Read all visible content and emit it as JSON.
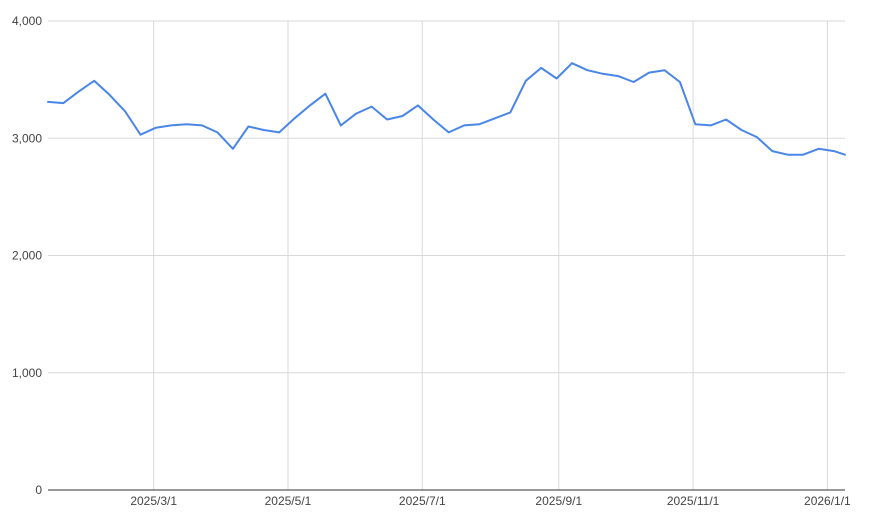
{
  "chart_data": {
    "type": "line",
    "title": "",
    "xlabel": "",
    "ylabel": "",
    "ylim": [
      0,
      4000
    ],
    "xlim": [
      "2025-01-12",
      "2026-01-09"
    ],
    "y_ticks": [
      {
        "value": 0,
        "label": "0"
      },
      {
        "value": 1000,
        "label": "1,000"
      },
      {
        "value": 2000,
        "label": "2,000"
      },
      {
        "value": 3000,
        "label": "3,000"
      },
      {
        "value": 4000,
        "label": "4,000"
      }
    ],
    "x_ticks": [
      {
        "date": "2025-03-01",
        "label": "2025/3/1"
      },
      {
        "date": "2025-05-01",
        "label": "2025/5/1"
      },
      {
        "date": "2025-07-01",
        "label": "2025/7/1"
      },
      {
        "date": "2025-09-01",
        "label": "2025/9/1"
      },
      {
        "date": "2025-11-01",
        "label": "2025/11/1"
      },
      {
        "date": "2026-01-01",
        "label": "2026/1/1"
      }
    ],
    "grid": true,
    "legend": "none",
    "color": "#4a86e8",
    "series": [
      {
        "x": [
          "2025-01-12",
          "2025-01-19",
          "2025-01-26",
          "2025-02-02",
          "2025-02-09",
          "2025-02-16",
          "2025-02-23",
          "2025-03-02",
          "2025-03-09",
          "2025-03-16",
          "2025-03-23",
          "2025-03-30",
          "2025-04-06",
          "2025-04-13",
          "2025-04-20",
          "2025-04-27",
          "2025-05-04",
          "2025-05-11",
          "2025-05-18",
          "2025-05-25",
          "2025-06-01",
          "2025-06-08",
          "2025-06-15",
          "2025-06-22",
          "2025-06-29",
          "2025-07-06",
          "2025-07-13",
          "2025-07-20",
          "2025-07-27",
          "2025-08-03",
          "2025-08-10",
          "2025-08-17",
          "2025-08-24",
          "2025-08-31",
          "2025-09-07",
          "2025-09-14",
          "2025-09-21",
          "2025-09-28",
          "2025-10-05",
          "2025-10-12",
          "2025-10-19",
          "2025-10-26",
          "2025-11-02",
          "2025-11-09",
          "2025-11-16",
          "2025-11-23",
          "2025-11-30",
          "2025-12-07",
          "2025-12-14",
          "2025-12-21",
          "2025-12-28",
          "2026-01-04",
          "2026-01-09"
        ],
        "values": [
          3310,
          3300,
          3400,
          3490,
          3370,
          3230,
          3030,
          3090,
          3110,
          3120,
          3110,
          3050,
          2910,
          3100,
          3070,
          3050,
          3170,
          3280,
          3380,
          3110,
          3210,
          3270,
          3160,
          3190,
          3280,
          3160,
          3050,
          3110,
          3120,
          3170,
          3220,
          3490,
          3600,
          3510,
          3640,
          3580,
          3550,
          3530,
          3480,
          3560,
          3580,
          3480,
          3120,
          3110,
          3160,
          3070,
          3010,
          2890,
          2860,
          2860,
          2910,
          2890,
          2860
        ]
      }
    ]
  }
}
